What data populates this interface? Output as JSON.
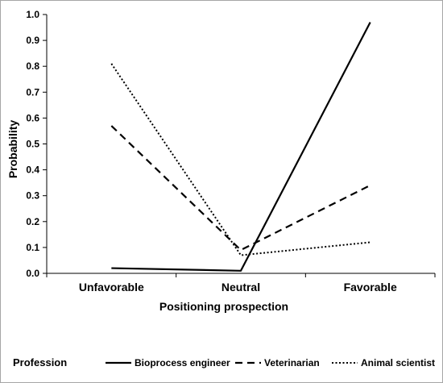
{
  "chart_data": {
    "type": "line",
    "categories": [
      "Unfavorable",
      "Neutral",
      "Favorable"
    ],
    "xlabel": "Positioning prospection",
    "ylabel": "Probability",
    "ylim": [
      0,
      1.0
    ],
    "yticks": [
      "0.0",
      "0.1",
      "0.2",
      "0.3",
      "0.4",
      "0.5",
      "0.6",
      "0.7",
      "0.8",
      "0.9",
      "1.0"
    ],
    "grid": false,
    "legend": {
      "title": "Profession",
      "placement": "bottom"
    },
    "series": [
      {
        "name": "Bioprocess engineer",
        "style": "solid",
        "color": "#000000",
        "values": [
          0.02,
          0.01,
          0.97
        ]
      },
      {
        "name": "Veterinarian",
        "style": "dashed",
        "color": "#000000",
        "values": [
          0.57,
          0.09,
          0.34
        ]
      },
      {
        "name": "Animal scientist",
        "style": "dotted",
        "color": "#000000",
        "values": [
          0.81,
          0.07,
          0.12
        ]
      }
    ]
  }
}
